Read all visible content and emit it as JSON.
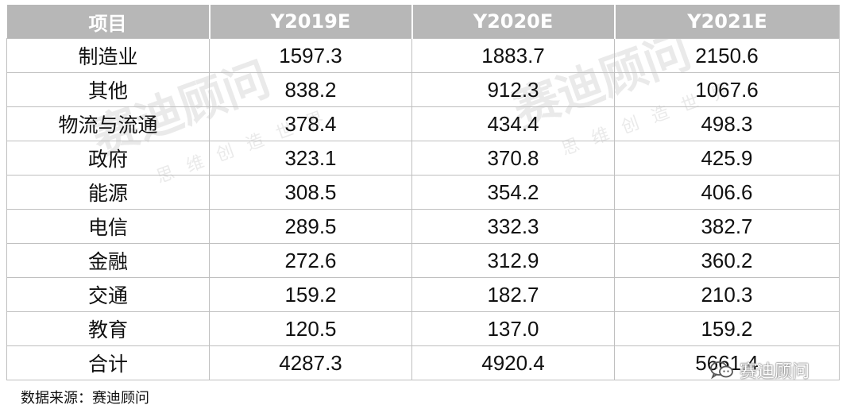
{
  "watermark": {
    "brand": "赛迪顾问",
    "slogan": "思维创造世界"
  },
  "table": {
    "headers": [
      "项目",
      "Y2019E",
      "Y2020E",
      "Y2021E"
    ],
    "rows": [
      [
        "制造业",
        "1597.3",
        "1883.7",
        "2150.6"
      ],
      [
        "其他",
        "838.2",
        "912.3",
        "1067.6"
      ],
      [
        "物流与流通",
        "378.4",
        "434.4",
        "498.3"
      ],
      [
        "政府",
        "323.1",
        "370.8",
        "425.9"
      ],
      [
        "能源",
        "308.5",
        "354.2",
        "406.6"
      ],
      [
        "电信",
        "289.5",
        "332.3",
        "382.7"
      ],
      [
        "金融",
        "272.6",
        "312.9",
        "360.2"
      ],
      [
        "交通",
        "159.2",
        "182.7",
        "210.3"
      ],
      [
        "教育",
        "120.5",
        "137.0",
        "159.2"
      ],
      [
        "合计",
        "4287.3",
        "4920.4",
        "5661.4"
      ]
    ]
  },
  "source_note": "数据来源：赛迪顾问",
  "wechat_badge": {
    "icon": "wechat-icon",
    "label": "赛迪顾问"
  }
}
